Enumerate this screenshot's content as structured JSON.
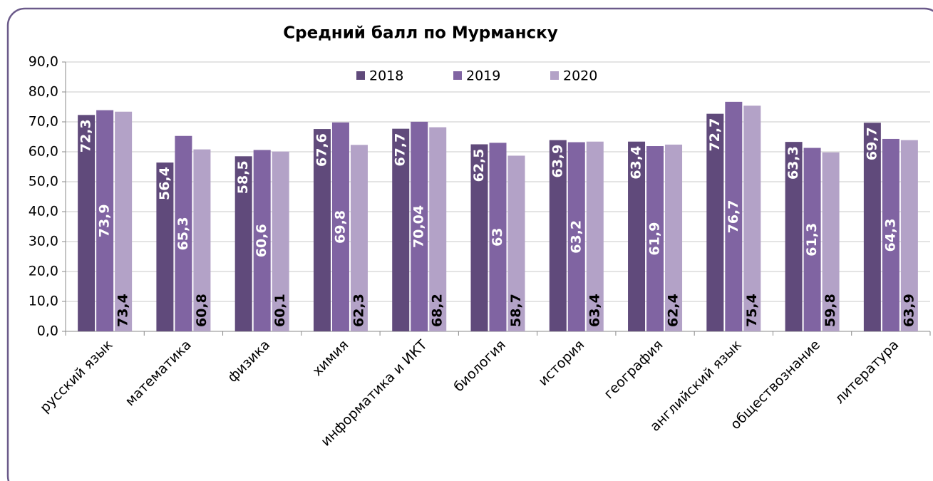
{
  "chart_data": {
    "type": "bar",
    "title": "Средний балл по Мурманску",
    "categories": [
      "русский язык",
      "математика",
      "физика",
      "химия",
      "информатика и ИКТ",
      "биология",
      "история",
      "география",
      "английский язык",
      "обществознание",
      "литература"
    ],
    "series": [
      {
        "name": "2018",
        "color": "#604a7b",
        "values": [
          72.3,
          56.4,
          58.5,
          67.6,
          67.7,
          62.5,
          63.9,
          63.4,
          72.7,
          63.3,
          69.7
        ],
        "value_labels": [
          "72,3",
          "56,4",
          "58,5",
          "67,6",
          "67,7",
          "62,5",
          "63,9",
          "63,4",
          "72,7",
          "63,3",
          "69,7"
        ]
      },
      {
        "name": "2019",
        "color": "#8064a2",
        "values": [
          73.9,
          65.3,
          60.6,
          69.8,
          70.04,
          63,
          63.2,
          61.9,
          76.7,
          61.3,
          64.3
        ],
        "value_labels": [
          "73,9",
          "65,3",
          "60,6",
          "69,8",
          "70,04",
          "63",
          "63,2",
          "61,9",
          "76,7",
          "61,3",
          "64,3"
        ]
      },
      {
        "name": "2020",
        "color": "#b3a2c7",
        "values": [
          73.4,
          60.8,
          60.1,
          62.3,
          68.2,
          58.7,
          63.4,
          62.4,
          75.4,
          59.8,
          63.9
        ],
        "value_labels": [
          "73,4",
          "60,8",
          "60,1",
          "62,3",
          "68,2",
          "58,7",
          "63,4",
          "62,4",
          "75,4",
          "59,8",
          "63,9"
        ]
      }
    ],
    "ylim": [
      0,
      90
    ],
    "yticks": [
      {
        "value": 0,
        "label": "0,0"
      },
      {
        "value": 10,
        "label": "10,0"
      },
      {
        "value": 20,
        "label": "20,0"
      },
      {
        "value": 30,
        "label": "30,0"
      },
      {
        "value": 40,
        "label": "40,0"
      },
      {
        "value": 50,
        "label": "50,0"
      },
      {
        "value": 60,
        "label": "60,0"
      },
      {
        "value": 70,
        "label": "70,0"
      },
      {
        "value": 80,
        "label": "80,0"
      },
      {
        "value": 90,
        "label": "90,0"
      }
    ],
    "grid": true,
    "legend": "top"
  }
}
